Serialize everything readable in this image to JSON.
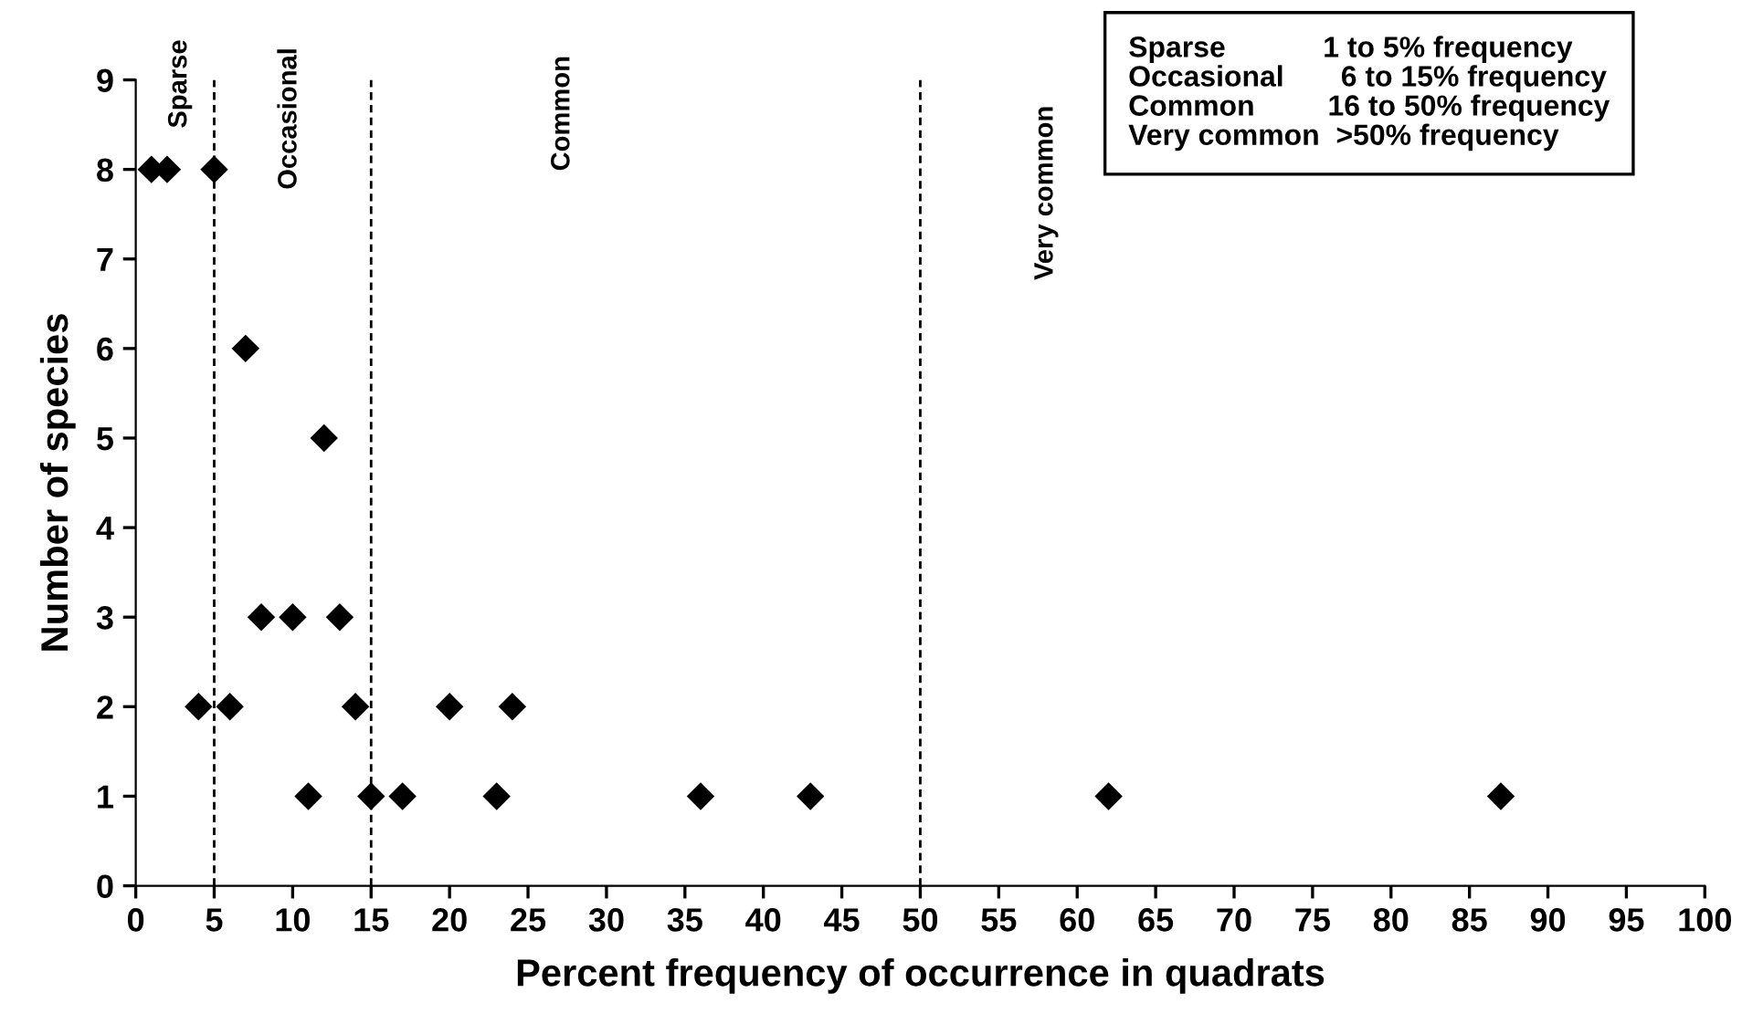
{
  "chart_data": {
    "type": "scatter",
    "xlabel": "Percent frequency of occurrence in quadrats",
    "ylabel": "Number of species",
    "x": [
      1,
      2,
      5,
      7,
      12,
      8,
      10,
      13,
      4,
      6,
      14,
      20,
      24,
      11,
      15,
      17,
      23,
      36,
      43,
      62,
      87
    ],
    "values": [
      8,
      8,
      8,
      6,
      5,
      3,
      3,
      3,
      2,
      2,
      2,
      2,
      2,
      1,
      1,
      1,
      1,
      1,
      1,
      1,
      1
    ],
    "color": "#000000",
    "marker": "diamond",
    "xlim": [
      0,
      100
    ],
    "xticks": [
      0,
      5,
      10,
      15,
      20,
      25,
      30,
      35,
      40,
      45,
      50,
      55,
      60,
      65,
      70,
      75,
      80,
      85,
      90,
      95,
      100
    ],
    "ylim": [
      0,
      9
    ],
    "yticks": [
      0,
      1,
      2,
      3,
      4,
      5,
      6,
      7,
      8,
      9
    ],
    "grid": false,
    "ref_lines": [
      {
        "axis": "x",
        "value": 5,
        "line_style": "dashed",
        "color": "#000000"
      },
      {
        "axis": "x",
        "value": 15,
        "line_style": "dashed",
        "color": "#000000"
      },
      {
        "axis": "x",
        "value": 50,
        "line_style": "dashed",
        "color": "#000000"
      }
    ],
    "annotations": [
      "Sparse",
      "Occasional",
      "Common",
      "Very common",
      "Sparse            1 to 5% frequency",
      "Occasional       6 to 15% frequency",
      "Common         16 to 50% frequency",
      "Very common  >50% frequency"
    ]
  }
}
